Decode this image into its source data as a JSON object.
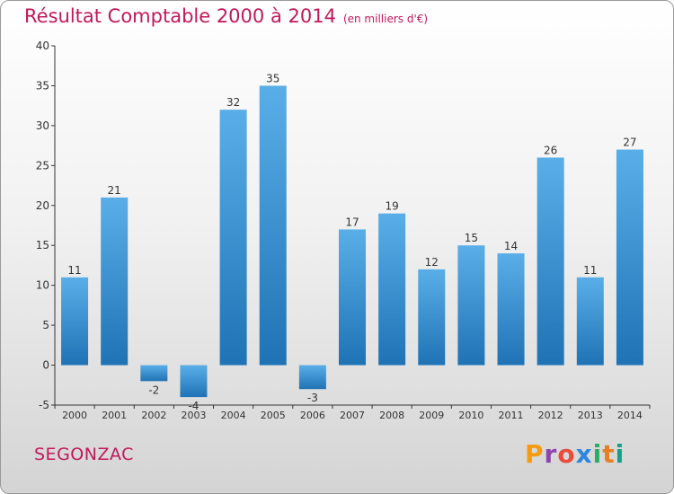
{
  "header": {
    "title": "Résultat Comptable 2000 à 2014",
    "unit": "(en milliers d'€)"
  },
  "footer": {
    "commune": "SEGONZAC",
    "brand": "Proxiti"
  },
  "colors": {
    "title": "#c2185b",
    "bar_light": "#5aaee8",
    "bar_dark": "#1f73b5",
    "axis": "#333333"
  },
  "chart_data": {
    "type": "bar",
    "title": "Résultat Comptable 2000 à 2014",
    "subtitle": "(en milliers d'€)",
    "xlabel": "",
    "ylabel": "",
    "categories": [
      "2000",
      "2001",
      "2002",
      "2003",
      "2004",
      "2005",
      "2006",
      "2007",
      "2008",
      "2009",
      "2010",
      "2011",
      "2012",
      "2013",
      "2014"
    ],
    "values": [
      11,
      21,
      -2,
      -4,
      32,
      35,
      -3,
      17,
      19,
      12,
      15,
      14,
      26,
      11,
      27
    ],
    "labels": [
      "11",
      "21",
      "-2",
      "-4",
      "32",
      "35",
      "-3",
      "17",
      "19",
      "12",
      "15",
      "14",
      "26",
      "11",
      "27"
    ],
    "ylim": [
      -5,
      40
    ],
    "yticks": [
      -5,
      0,
      5,
      10,
      15,
      20,
      25,
      30,
      35,
      40
    ],
    "grid": false,
    "legend": "none"
  }
}
